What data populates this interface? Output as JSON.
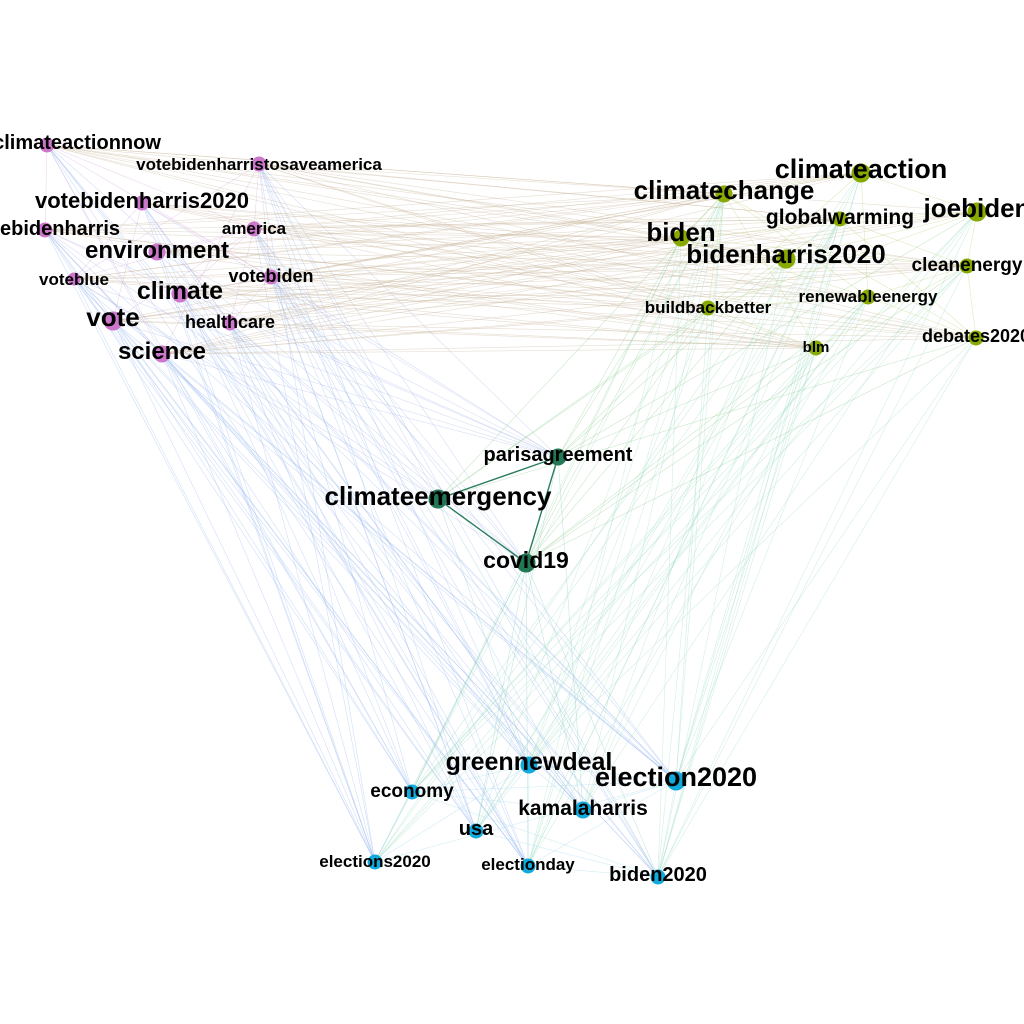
{
  "clusters": {
    "purple": {
      "color": "#cc77cc"
    },
    "olive": {
      "color": "#88aa00"
    },
    "teal": {
      "color": "#227755"
    },
    "blue": {
      "color": "#11aadd"
    }
  },
  "edge_colors": {
    "purple_olive": "#c8b49a",
    "purple_blue": "#9ab8f0",
    "olive_teal": "#8ccc8c",
    "olive_blue": "#9cdcc0",
    "teal_blue": "#80c8c0",
    "purple_teal": "#a8b8e8",
    "teal_internal": "#227755"
  },
  "nodes": [
    {
      "id": "climateactionnow",
      "label": "climateactionnow",
      "cluster": "purple"
    },
    {
      "id": "votebidenharristosaveamerica",
      "label": "votebidenharristosaveamerica",
      "cluster": "purple"
    },
    {
      "id": "votebidenharris2020",
      "label": "votebidenharris2020",
      "cluster": "purple"
    },
    {
      "id": "votebidenharris",
      "label": "votebidenharris",
      "cluster": "purple"
    },
    {
      "id": "america",
      "label": "america",
      "cluster": "purple"
    },
    {
      "id": "environment",
      "label": "environment",
      "cluster": "purple"
    },
    {
      "id": "voteblue",
      "label": "voteblue",
      "cluster": "purple"
    },
    {
      "id": "votebiden",
      "label": "votebiden",
      "cluster": "purple"
    },
    {
      "id": "climate",
      "label": "climate",
      "cluster": "purple"
    },
    {
      "id": "vote",
      "label": "vote",
      "cluster": "purple"
    },
    {
      "id": "healthcare",
      "label": "healthcare",
      "cluster": "purple"
    },
    {
      "id": "science",
      "label": "science",
      "cluster": "purple"
    },
    {
      "id": "climateaction",
      "label": "climateaction",
      "cluster": "olive"
    },
    {
      "id": "climatechange",
      "label": "climatechange",
      "cluster": "olive"
    },
    {
      "id": "joebiden",
      "label": "joebiden",
      "cluster": "olive"
    },
    {
      "id": "globalwarming",
      "label": "globalwarming",
      "cluster": "olive"
    },
    {
      "id": "biden",
      "label": "biden",
      "cluster": "olive"
    },
    {
      "id": "bidenharris2020",
      "label": "bidenharris2020",
      "cluster": "olive"
    },
    {
      "id": "cleanenergy",
      "label": "cleanenergy",
      "cluster": "olive"
    },
    {
      "id": "renewableenergy",
      "label": "renewableenergy",
      "cluster": "olive"
    },
    {
      "id": "buildbackbetter",
      "label": "buildbackbetter",
      "cluster": "olive"
    },
    {
      "id": "debates2020",
      "label": "debates2020",
      "cluster": "olive"
    },
    {
      "id": "blm",
      "label": "blm",
      "cluster": "olive"
    },
    {
      "id": "parisagreement",
      "label": "parisagreement",
      "cluster": "teal"
    },
    {
      "id": "climateemergency",
      "label": "climateemergency",
      "cluster": "teal"
    },
    {
      "id": "covid19",
      "label": "covid19",
      "cluster": "teal"
    },
    {
      "id": "greennewdeal",
      "label": "greennewdeal",
      "cluster": "blue"
    },
    {
      "id": "election2020",
      "label": "election2020",
      "cluster": "blue"
    },
    {
      "id": "economy",
      "label": "economy",
      "cluster": "blue"
    },
    {
      "id": "kamalaharris",
      "label": "kamalaharris",
      "cluster": "blue"
    },
    {
      "id": "usa",
      "label": "usa",
      "cluster": "blue"
    },
    {
      "id": "elections2020",
      "label": "elections2020",
      "cluster": "blue"
    },
    {
      "id": "electionday",
      "label": "electionday",
      "cluster": "blue"
    },
    {
      "id": "biden2020",
      "label": "biden2020",
      "cluster": "blue"
    }
  ]
}
